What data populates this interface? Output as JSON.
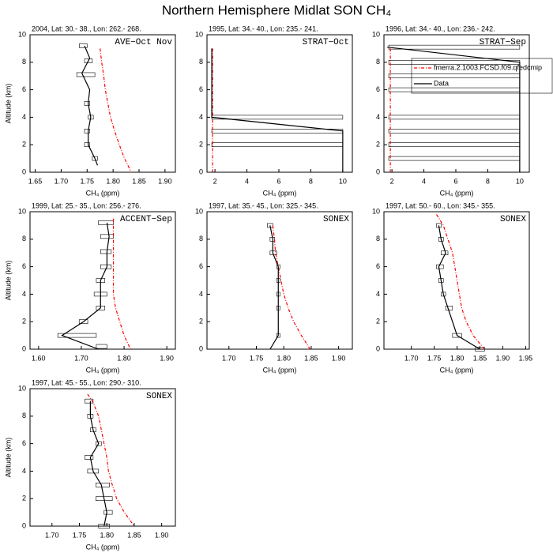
{
  "title": "Northern Hemisphere Midlat SON CH₄",
  "chart_data": [
    {
      "type": "line",
      "title": "2004, Lat: 30.- 38., Lon: 262.- 268.",
      "annotation": "AVE−Oct Nov",
      "xlabel": "CH₄ (ppm)",
      "ylabel": "Altitude (km)",
      "xlim": [
        1.64,
        1.92
      ],
      "xticks": [
        {
          "value": 1.65,
          "label": "1.65"
        },
        {
          "value": 1.7,
          "label": "1.70"
        },
        {
          "value": 1.75,
          "label": "1.75"
        },
        {
          "value": 1.8,
          "label": "1.80"
        },
        {
          "value": 1.85,
          "label": "1.85"
        },
        {
          "value": 1.9,
          "label": "1.90"
        }
      ],
      "ylim": [
        0,
        10
      ],
      "yticks": [
        0,
        2,
        4,
        6,
        8,
        10
      ],
      "series": [
        {
          "color": "#ff0000",
          "dash": "dashed",
          "y": [
            9,
            8,
            7,
            6,
            5,
            4,
            3,
            2,
            1,
            0
          ],
          "values": [
            1.775,
            1.778,
            1.782,
            1.785,
            1.79,
            1.795,
            1.803,
            1.812,
            1.822,
            1.835
          ]
        },
        {
          "color": "#000000",
          "dash": "solid",
          "y": [
            9.2,
            8.3,
            7.2,
            6,
            5,
            4,
            3,
            2,
            1,
            0.5
          ],
          "values": [
            1.745,
            1.755,
            1.74,
            1.755,
            1.752,
            1.757,
            1.752,
            1.752,
            1.765,
            1.77
          ]
        }
      ],
      "ranges": {
        "y": [
          9.2,
          8.1,
          7.1,
          5,
          4,
          3,
          2,
          1
        ],
        "low": [
          1.735,
          1.745,
          1.73,
          1.745,
          1.752,
          1.745,
          1.745,
          1.76
        ],
        "high": [
          1.75,
          1.76,
          1.765,
          1.755,
          1.762,
          1.755,
          1.755,
          1.77
        ]
      }
    },
    {
      "type": "line",
      "title": "1995, Lat: 34.- 40., Lon: 235.- 241.",
      "annotation": "STRAT−Oct",
      "xlabel": "CH₄ (ppm)",
      "xlim": [
        1.5,
        10.6
      ],
      "xticks": [
        2,
        4,
        6,
        8,
        10
      ],
      "ylim": [
        0,
        10
      ],
      "yticks": [
        0,
        2,
        4,
        6,
        8,
        10
      ],
      "series": [
        {
          "color": "#ff0000",
          "dash": "dashed",
          "y": [
            9,
            7,
            5,
            3,
            1,
            0
          ],
          "values": [
            1.85,
            1.85,
            1.85,
            1.85,
            1.85,
            1.85
          ]
        },
        {
          "color": "#000000",
          "dash": "solid",
          "y": [
            9,
            8,
            6,
            4,
            3,
            2,
            1,
            0
          ],
          "values": [
            1.8,
            1.8,
            1.8,
            1.8,
            10,
            10,
            10,
            10
          ]
        }
      ],
      "ranges": {
        "y": [
          4,
          3,
          2
        ],
        "low": [
          1.8,
          1.8,
          1.8
        ],
        "high": [
          10,
          10,
          10
        ]
      }
    },
    {
      "type": "line",
      "title": "1996, Lat: 34.- 40., Lon: 236.- 242.",
      "annotation": "STRAT−Sep",
      "xlabel": "CH₄ (ppm)",
      "xlim": [
        1.5,
        10.6
      ],
      "xticks": [
        2,
        4,
        6,
        8,
        10
      ],
      "ylim": [
        0,
        10
      ],
      "yticks": [
        0,
        2,
        4,
        6,
        8,
        10
      ],
      "series": [
        {
          "name": "fmerra.2.1003.FCSD.f09.qfedcmip",
          "color": "#ff0000",
          "dash": "dashed",
          "y": [
            9,
            7,
            5,
            3,
            1,
            0
          ],
          "values": [
            1.9,
            1.9,
            1.9,
            1.9,
            1.9,
            1.9
          ]
        },
        {
          "name": "Data",
          "color": "#000000",
          "dash": "solid",
          "y": [
            9.1,
            8,
            6,
            4,
            2,
            0
          ],
          "values": [
            1.7,
            10,
            10,
            10,
            10,
            10
          ]
        }
      ],
      "ranges": {
        "y": [
          9.1,
          8,
          7,
          6,
          4,
          3,
          2,
          1
        ],
        "low": [
          1.8,
          1.8,
          1.8,
          1.8,
          1.8,
          1.8,
          1.8,
          1.8
        ],
        "high": [
          10,
          10,
          10,
          10,
          10,
          10,
          10,
          10
        ]
      }
    },
    {
      "type": "line",
      "title": "1999, Lat: 25.- 35., Lon: 256.- 276.",
      "annotation": "ACCENT−Sep",
      "xlabel": "CH₄ (ppm)",
      "ylabel": "Altitude (km)",
      "xlim": [
        1.58,
        1.92
      ],
      "xticks": [
        {
          "value": 1.6,
          "label": "1.60"
        },
        {
          "value": 1.7,
          "label": "1.70"
        },
        {
          "value": 1.8,
          "label": "1.80"
        },
        {
          "value": 1.9,
          "label": "1.90"
        }
      ],
      "ylim": [
        0,
        10
      ],
      "yticks": [
        0,
        2,
        4,
        6,
        8,
        10
      ],
      "series": [
        {
          "color": "#ff0000",
          "dash": "dashed",
          "y": [
            9.5,
            8,
            6,
            4,
            3,
            2,
            1,
            0
          ],
          "values": [
            1.775,
            1.775,
            1.775,
            1.775,
            1.78,
            1.79,
            1.8,
            1.815
          ]
        },
        {
          "color": "#000000",
          "dash": "solid",
          "y": [
            9.2,
            8.2,
            7.1,
            6,
            5,
            4,
            3,
            2,
            1,
            0
          ],
          "values": [
            1.76,
            1.765,
            1.76,
            1.76,
            1.745,
            1.745,
            1.745,
            1.705,
            1.655,
            1.74
          ]
        }
      ],
      "ranges": {
        "y": [
          9.2,
          8.2,
          7.1,
          6,
          5,
          4,
          3,
          2,
          1,
          0.2
        ],
        "low": [
          1.74,
          1.745,
          1.745,
          1.745,
          1.735,
          1.73,
          1.735,
          1.695,
          1.645,
          1.735
        ],
        "high": [
          1.775,
          1.775,
          1.77,
          1.77,
          1.755,
          1.76,
          1.755,
          1.715,
          1.735,
          1.76
        ]
      }
    },
    {
      "type": "line",
      "title": "1997, Lat: 35.- 45., Lon: 325.- 345.",
      "annotation": "SONEX",
      "xlabel": "CH₄ (ppm)",
      "xlim": [
        1.66,
        1.925
      ],
      "xticks": [
        {
          "value": 1.7,
          "label": "1.70"
        },
        {
          "value": 1.75,
          "label": "1.75"
        },
        {
          "value": 1.8,
          "label": "1.80"
        },
        {
          "value": 1.85,
          "label": "1.85"
        },
        {
          "value": 1.9,
          "label": "1.90"
        }
      ],
      "ylim": [
        0,
        10
      ],
      "yticks": [
        0,
        2,
        4,
        6,
        8,
        10
      ],
      "series": [
        {
          "color": "#ff0000",
          "dash": "dashed",
          "y": [
            9,
            8,
            7,
            6,
            5,
            4,
            3,
            2,
            1,
            0
          ],
          "values": [
            1.78,
            1.783,
            1.785,
            1.79,
            1.795,
            1.8,
            1.808,
            1.818,
            1.832,
            1.848
          ]
        },
        {
          "color": "#000000",
          "dash": "solid",
          "y": [
            9,
            8,
            7,
            6,
            5,
            4,
            3,
            2,
            1,
            0
          ],
          "values": [
            1.775,
            1.78,
            1.78,
            1.79,
            1.79,
            1.79,
            1.79,
            1.79,
            1.79,
            1.775
          ]
        }
      ],
      "ranges": {
        "y": [
          9,
          8,
          7,
          6,
          5,
          4,
          3,
          1
        ],
        "low": [
          1.77,
          1.775,
          1.775,
          1.787,
          1.787,
          1.787,
          1.787,
          1.787
        ],
        "high": [
          1.78,
          1.783,
          1.787,
          1.793,
          1.793,
          1.793,
          1.793,
          1.793
        ]
      }
    },
    {
      "type": "line",
      "title": "1997, Lat: 50.- 60., Lon: 345.- 355.",
      "annotation": "SONEX",
      "xlabel": "CH₄ (ppm)",
      "xlim": [
        1.64,
        1.958
      ],
      "xticks": [
        {
          "value": 1.7,
          "label": "1.70"
        },
        {
          "value": 1.75,
          "label": "1.75"
        },
        {
          "value": 1.8,
          "label": "1.80"
        },
        {
          "value": 1.85,
          "label": "1.85"
        },
        {
          "value": 1.9,
          "label": "1.90"
        },
        {
          "value": 1.95,
          "label": "1.95"
        }
      ],
      "ylim": [
        0,
        10
      ],
      "yticks": [
        0,
        2,
        4,
        6,
        8,
        10
      ],
      "series": [
        {
          "color": "#ff0000",
          "dash": "dashed",
          "y": [
            9.8,
            9,
            8,
            7,
            6,
            5,
            4,
            3,
            2,
            1,
            0
          ],
          "values": [
            1.755,
            1.77,
            1.78,
            1.79,
            1.795,
            1.8,
            1.805,
            1.81,
            1.82,
            1.835,
            1.86
          ]
        },
        {
          "color": "#000000",
          "dash": "solid",
          "y": [
            9,
            8,
            7,
            6,
            5,
            4,
            3,
            2,
            1,
            0
          ],
          "values": [
            1.76,
            1.765,
            1.775,
            1.76,
            1.765,
            1.77,
            1.78,
            1.79,
            1.8,
            1.85
          ]
        }
      ],
      "ranges": {
        "y": [
          9,
          8,
          7,
          6,
          5,
          4,
          3,
          1,
          0
        ],
        "low": [
          1.755,
          1.76,
          1.765,
          1.755,
          1.76,
          1.765,
          1.775,
          1.79,
          1.84
        ],
        "high": [
          1.765,
          1.77,
          1.78,
          1.77,
          1.77,
          1.775,
          1.79,
          1.81,
          1.86
        ]
      }
    },
    {
      "type": "line",
      "title": "1997, Lat: 45.- 55., Lon: 290.- 310.",
      "annotation": "SONEX",
      "xlabel": "CH₄ (ppm)",
      "ylabel": "Altitude (km)",
      "xlim": [
        1.66,
        1.925
      ],
      "xticks": [
        {
          "value": 1.7,
          "label": "1.70"
        },
        {
          "value": 1.75,
          "label": "1.75"
        },
        {
          "value": 1.8,
          "label": "1.80"
        },
        {
          "value": 1.85,
          "label": "1.85"
        },
        {
          "value": 1.9,
          "label": "1.90"
        }
      ],
      "ylim": [
        0,
        10
      ],
      "yticks": [
        0,
        2,
        4,
        6,
        8,
        10
      ],
      "series": [
        {
          "color": "#ff0000",
          "dash": "dashed",
          "y": [
            9.6,
            9,
            8,
            7,
            6,
            5,
            4,
            3,
            2,
            1,
            0
          ],
          "values": [
            1.765,
            1.775,
            1.785,
            1.79,
            1.795,
            1.8,
            1.803,
            1.81,
            1.818,
            1.832,
            1.85
          ]
        },
        {
          "color": "#000000",
          "dash": "solid",
          "y": [
            9.1,
            8,
            7,
            6,
            5,
            4,
            3,
            2,
            1,
            0
          ],
          "values": [
            1.77,
            1.77,
            1.775,
            1.785,
            1.77,
            1.775,
            1.79,
            1.795,
            1.8,
            1.795
          ]
        }
      ],
      "ranges": {
        "y": [
          9.1,
          8,
          7,
          6,
          5,
          4,
          3,
          2,
          1,
          0
        ],
        "low": [
          1.76,
          1.765,
          1.77,
          1.78,
          1.76,
          1.765,
          1.78,
          1.78,
          1.795,
          1.785
        ],
        "high": [
          1.775,
          1.775,
          1.78,
          1.79,
          1.775,
          1.785,
          1.805,
          1.81,
          1.81,
          1.805
        ]
      }
    }
  ]
}
